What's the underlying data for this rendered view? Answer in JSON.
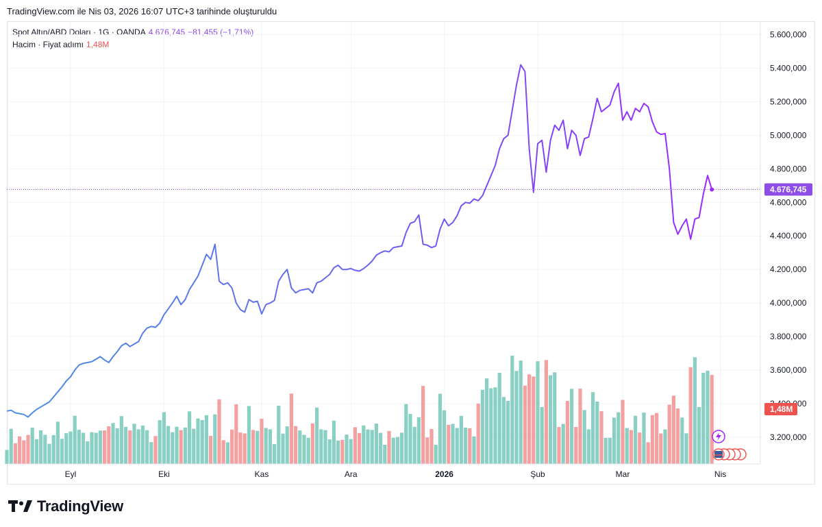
{
  "caption": "TradingView.com ile Nis 03, 2026 16:07 UTC+3 tarihinde oluşturuldu",
  "legend": {
    "symbol": "Spot Altın/ABD Doları · 1G · OANDA",
    "price": "4.676,745",
    "change": "−81,455 (−1,71%)",
    "volume_label": "Hacim · Fiyat adımı",
    "volume_value": "1,48M"
  },
  "brand": "TradingView",
  "colors": {
    "line_start": "#4a90e2",
    "line_end": "#9c27ff",
    "vol_up": "#89cfc4",
    "vol_down": "#f5a0a0",
    "price_label": "#8f4de8",
    "vol_label": "#ef5350"
  },
  "chart_data": {
    "type": "line",
    "title": "Spot Altın/ABD Doları · 1G · OANDA",
    "ylim": [
      3040000,
      5680000
    ],
    "y_ticks": [
      "5.600,000",
      "5.400,000",
      "5.200,000",
      "5.000,000",
      "4.800,000",
      "4.600,000",
      "4.400,000",
      "4.200,000",
      "4.000,000",
      "3.800,000",
      "3.600,000",
      "3.400,000",
      "3.200,000"
    ],
    "y_tick_values": [
      5600000,
      5400000,
      5200000,
      5000000,
      4800000,
      4600000,
      4400000,
      4200000,
      4000000,
      3800000,
      3600000,
      3400000,
      3200000
    ],
    "x_labels": [
      {
        "label": "Eyl",
        "index": 15,
        "bold": false
      },
      {
        "label": "Eki",
        "index": 37,
        "bold": false
      },
      {
        "label": "Kas",
        "index": 60,
        "bold": false
      },
      {
        "label": "Ara",
        "index": 81,
        "bold": false
      },
      {
        "label": "2026",
        "index": 103,
        "bold": true
      },
      {
        "label": "Şub",
        "index": 125,
        "bold": false
      },
      {
        "label": "Mar",
        "index": 145,
        "bold": false
      },
      {
        "label": "Nis",
        "index": 168,
        "bold": false
      }
    ],
    "last_price": 4676745,
    "last_price_label": "4.676,745",
    "volume_tag": "1,48M",
    "volume_max": 4000000,
    "close": [
      3355000,
      3360000,
      3345000,
      3340000,
      3335000,
      3320000,
      3345000,
      3365000,
      3380000,
      3395000,
      3410000,
      3440000,
      3470000,
      3500000,
      3535000,
      3560000,
      3600000,
      3630000,
      3640000,
      3645000,
      3650000,
      3665000,
      3680000,
      3660000,
      3645000,
      3680000,
      3710000,
      3745000,
      3760000,
      3740000,
      3755000,
      3770000,
      3820000,
      3850000,
      3860000,
      3855000,
      3880000,
      3930000,
      3965000,
      4000000,
      4040000,
      3990000,
      4020000,
      4080000,
      4120000,
      4160000,
      4225000,
      4290000,
      4260000,
      4350000,
      4130000,
      4110000,
      4120000,
      4090000,
      4000000,
      3960000,
      3945000,
      4020000,
      4005000,
      4010000,
      3935000,
      3990000,
      4000000,
      4015000,
      4130000,
      4170000,
      4200000,
      4090000,
      4060000,
      4075000,
      4080000,
      4085000,
      4060000,
      4120000,
      4130000,
      4150000,
      4170000,
      4210000,
      4225000,
      4200000,
      4200000,
      4205000,
      4195000,
      4190000,
      4205000,
      4225000,
      4250000,
      4285000,
      4300000,
      4310000,
      4305000,
      4330000,
      4335000,
      4340000,
      4420000,
      4475000,
      4485000,
      4525000,
      4350000,
      4345000,
      4330000,
      4340000,
      4440000,
      4500000,
      4460000,
      4480000,
      4520000,
      4580000,
      4600000,
      4595000,
      4620000,
      4610000,
      4640000,
      4700000,
      4760000,
      4820000,
      4920000,
      4980000,
      5000000,
      5150000,
      5300000,
      5420000,
      5380000,
      4920000,
      4660000,
      4950000,
      4970000,
      4780000,
      4970000,
      5060000,
      5030000,
      5090000,
      4920000,
      5030000,
      5000000,
      4880000,
      4980000,
      4990000,
      5100000,
      5220000,
      5140000,
      5160000,
      5180000,
      5260000,
      5310000,
      5090000,
      5140000,
      5090000,
      5160000,
      5140000,
      5190000,
      5170000,
      5080000,
      5020000,
      5005000,
      5010000,
      4800000,
      4480000,
      4410000,
      4460000,
      4500000,
      4380000,
      4500000,
      4510000,
      4650000,
      4760000,
      4676745
    ]
  }
}
